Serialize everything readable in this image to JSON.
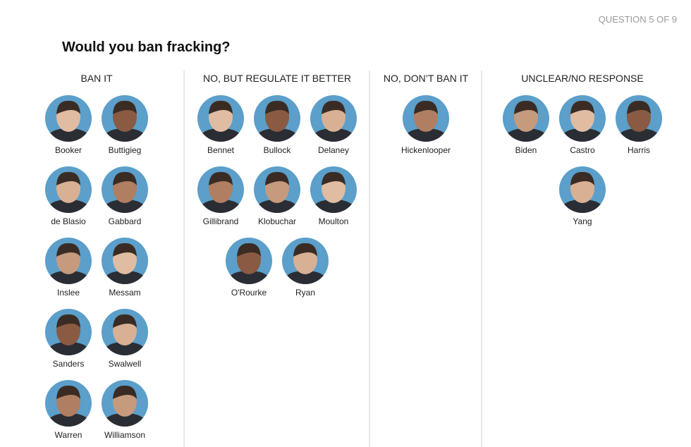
{
  "progress": "QUESTION 5 OF 9",
  "title": "Would you ban fracking?",
  "columns": [
    {
      "heading": "BAN IT",
      "candidates": [
        "Booker",
        "Buttigieg",
        "de Blasio",
        "Gabbard",
        "Inslee",
        "Messam",
        "Sanders",
        "Swalwell",
        "Warren",
        "Williamson"
      ]
    },
    {
      "heading": "NO, BUT REGULATE IT BETTER",
      "candidates": [
        "Bennet",
        "Bullock",
        "Delaney",
        "Gillibrand",
        "Klobuchar",
        "Moulton",
        "O'Rourke",
        "Ryan"
      ]
    },
    {
      "heading": "NO, DON’T BAN IT",
      "candidates": [
        "Hickenlooper"
      ]
    },
    {
      "heading": "UNCLEAR/NO RESPONSE",
      "candidates": [
        "Biden",
        "Castro",
        "Harris",
        "Yang"
      ]
    }
  ]
}
